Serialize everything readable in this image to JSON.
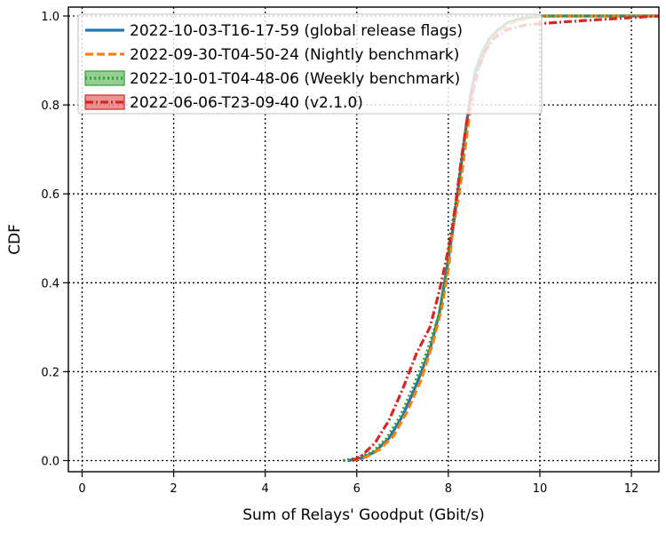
{
  "chart_data": {
    "type": "line",
    "title": "",
    "xlabel": "Sum of Relays' Goodput (Gbit/s)",
    "ylabel": "CDF",
    "xlim": [
      -0.3,
      12.6
    ],
    "ylim": [
      -0.025,
      1.02
    ],
    "x_ticks": [
      0,
      2,
      4,
      6,
      8,
      10,
      12
    ],
    "y_ticks": [
      0.0,
      0.2,
      0.4,
      0.6,
      0.8,
      1.0
    ],
    "x_tick_labels": [
      "0",
      "2",
      "4",
      "6",
      "8",
      "10",
      "12"
    ],
    "y_tick_labels": [
      "0.0",
      "0.2",
      "0.4",
      "0.6",
      "0.8",
      "1.0"
    ],
    "grid": true,
    "legend_position": "top-left",
    "series": [
      {
        "name": "2022-10-03-T16-17-59 (global release flags)",
        "color": "#1f77b4",
        "style": "solid",
        "x": [
          5.8,
          6.1,
          6.4,
          6.7,
          7.0,
          7.3,
          7.6,
          7.8,
          7.95,
          8.1,
          8.2,
          8.3,
          8.4,
          8.5,
          8.6,
          8.75,
          8.9,
          9.1,
          9.3,
          9.6,
          10.0,
          10.5,
          11.5,
          12.6
        ],
        "y": [
          0.0,
          0.005,
          0.02,
          0.05,
          0.1,
          0.17,
          0.25,
          0.33,
          0.42,
          0.52,
          0.6,
          0.68,
          0.76,
          0.83,
          0.88,
          0.92,
          0.95,
          0.97,
          0.985,
          0.995,
          1.0,
          1.0,
          1.0,
          1.0
        ]
      },
      {
        "name": "2022-09-30-T04-50-24 (Nightly benchmark)",
        "color": "#ff7f0e",
        "style": "dashed",
        "x": [
          5.9,
          6.2,
          6.5,
          6.8,
          7.1,
          7.4,
          7.65,
          7.85,
          8.0,
          8.1,
          8.25,
          8.35,
          8.45,
          8.55,
          8.65,
          8.8,
          8.95,
          9.15,
          9.4,
          9.7,
          10.1,
          10.8,
          11.8,
          12.6
        ],
        "y": [
          0.0,
          0.008,
          0.025,
          0.055,
          0.11,
          0.18,
          0.26,
          0.34,
          0.43,
          0.52,
          0.61,
          0.69,
          0.77,
          0.83,
          0.88,
          0.92,
          0.95,
          0.97,
          0.985,
          0.995,
          1.0,
          1.0,
          1.0,
          1.0
        ]
      },
      {
        "name": "2022-10-01-T04-48-06 (Weekly benchmark)",
        "color": "#2ca02c",
        "style": "dotted",
        "x": [
          5.7,
          6.0,
          6.35,
          6.65,
          6.95,
          7.25,
          7.55,
          7.8,
          7.95,
          8.05,
          8.2,
          8.3,
          8.4,
          8.5,
          8.6,
          8.75,
          8.9,
          9.1,
          9.3,
          9.6,
          10.0,
          10.6,
          11.6,
          12.6
        ],
        "y": [
          0.0,
          0.006,
          0.02,
          0.05,
          0.1,
          0.17,
          0.25,
          0.33,
          0.42,
          0.51,
          0.6,
          0.68,
          0.76,
          0.83,
          0.88,
          0.92,
          0.95,
          0.97,
          0.985,
          0.995,
          1.0,
          1.0,
          1.0,
          1.0
        ]
      },
      {
        "name": "2022-06-06-T23-09-40 (v2.1.0)",
        "color": "#d62728",
        "style": "dashdot",
        "x": [
          5.9,
          6.1,
          6.4,
          6.7,
          7.0,
          7.3,
          7.6,
          7.8,
          7.95,
          8.1,
          8.2,
          8.3,
          8.4,
          8.5,
          8.65,
          8.8,
          9.0,
          9.3,
          9.7,
          10.3,
          11.0,
          11.8,
          12.6
        ],
        "y": [
          0.0,
          0.01,
          0.04,
          0.09,
          0.16,
          0.24,
          0.3,
          0.38,
          0.45,
          0.53,
          0.61,
          0.69,
          0.76,
          0.82,
          0.88,
          0.92,
          0.95,
          0.97,
          0.98,
          0.985,
          0.99,
          0.995,
          1.0
        ]
      }
    ]
  }
}
